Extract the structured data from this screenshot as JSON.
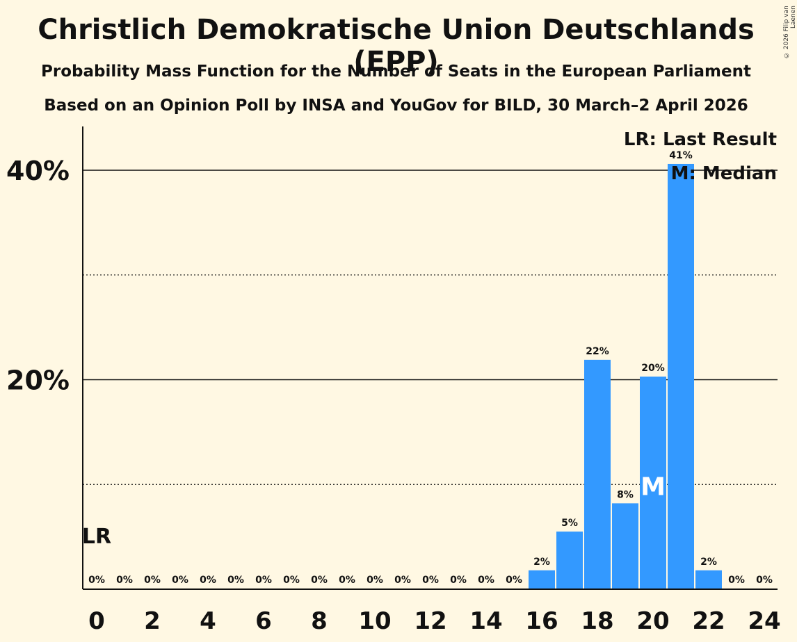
{
  "title": "Christlich Demokratische Union Deutschlands (EPP)",
  "subtitle": "Probability Mass Function for the Number of Seats in the European Parliament",
  "subtitle2": "Based on an Opinion Poll by INSA and YouGov for BILD, 30 March–2 April 2026",
  "copyright": "© 2026 Filip van Laenen",
  "legend": {
    "last_result": "LR: Last Result",
    "median": "M: Median"
  },
  "markers": {
    "last_result_label": "LR",
    "last_result_seat": 0,
    "median_label": "M",
    "median_seat": 20
  },
  "colors": {
    "bar": "#3399FF",
    "background": "#FFF8E3",
    "text": "#111111"
  },
  "chart_data": {
    "type": "bar",
    "title": "Christlich Demokratische Union Deutschlands (EPP)",
    "xlabel": "",
    "ylabel": "",
    "ylim": [
      0,
      44
    ],
    "yticks": [
      20,
      40
    ],
    "ytick_labels": [
      "20%",
      "40%"
    ],
    "minor_gridlines": [
      10,
      30
    ],
    "categories": [
      0,
      1,
      2,
      3,
      4,
      5,
      6,
      7,
      8,
      9,
      10,
      11,
      12,
      13,
      14,
      15,
      16,
      17,
      18,
      19,
      20,
      21,
      22,
      23,
      24
    ],
    "values": [
      0,
      0,
      0,
      0,
      0,
      0,
      0,
      0,
      0,
      0,
      0,
      0,
      0,
      0,
      0,
      0,
      1.8,
      5.5,
      21.9,
      8.2,
      20.3,
      40.6,
      1.8,
      0,
      0
    ],
    "value_labels": [
      "0%",
      "0%",
      "0%",
      "0%",
      "0%",
      "0%",
      "0%",
      "0%",
      "0%",
      "0%",
      "0%",
      "0%",
      "0%",
      "0%",
      "0%",
      "0%",
      "2%",
      "5%",
      "22%",
      "8%",
      "20%",
      "41%",
      "2%",
      "0%",
      "0%"
    ],
    "xtick_labels": [
      "0",
      "2",
      "4",
      "6",
      "8",
      "10",
      "12",
      "14",
      "16",
      "18",
      "20",
      "22",
      "24"
    ],
    "xtick_values": [
      0,
      2,
      4,
      6,
      8,
      10,
      12,
      14,
      16,
      18,
      20,
      22,
      24
    ]
  }
}
